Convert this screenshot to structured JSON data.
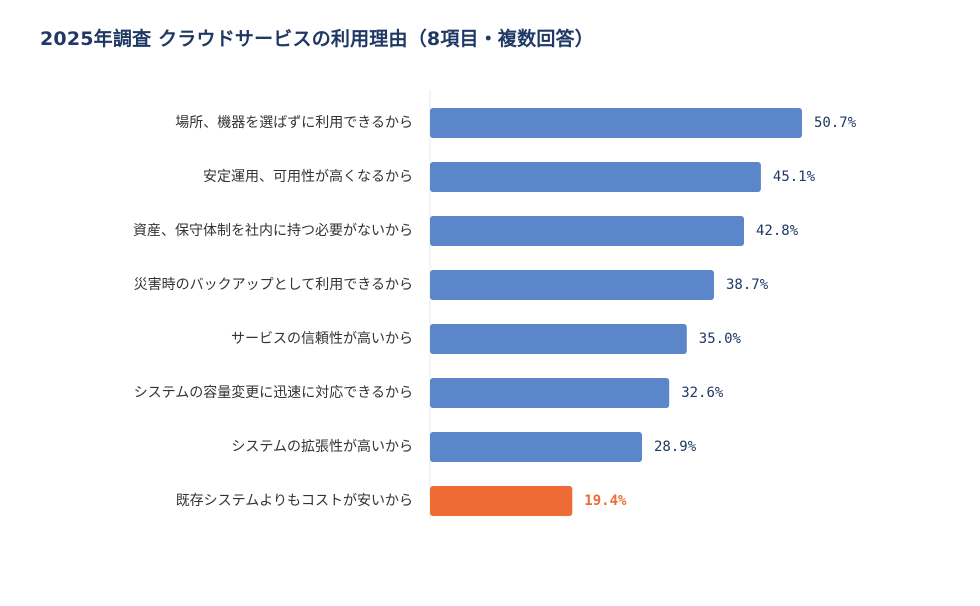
{
  "title": "2025年調査 クラウドサービスの利用理由（8項目・複数回答）",
  "colors": {
    "bar": "#5b86c9",
    "highlight": "#ee6b35",
    "value_text": "#1f3864",
    "axis": "#e4e8ef"
  },
  "chart_data": {
    "type": "bar",
    "orientation": "horizontal",
    "title": "2025年調査 クラウドサービスの利用理由（8項目・複数回答）",
    "xlabel": "",
    "ylabel": "",
    "xlim": [
      0,
      60
    ],
    "grid": false,
    "unit": "%",
    "categories": [
      "場所、機器を選ばずに利用できるから",
      "安定運用、可用性が高くなるから",
      "資産、保守体制を社内に持つ必要がないから",
      "災害時のバックアップとして利用できるから",
      "サービスの信頼性が高いから",
      "システムの容量変更に迅速に対応できるから",
      "システムの拡張性が高いから",
      "既存システムよりもコストが安いから"
    ],
    "values": [
      50.7,
      45.1,
      42.8,
      38.7,
      35.0,
      32.6,
      28.9,
      19.4
    ],
    "value_labels": [
      "50.7%",
      "45.1%",
      "42.8%",
      "38.7%",
      "35.0%",
      "32.6%",
      "28.9%",
      "19.4%"
    ],
    "highlight_index": 7
  }
}
